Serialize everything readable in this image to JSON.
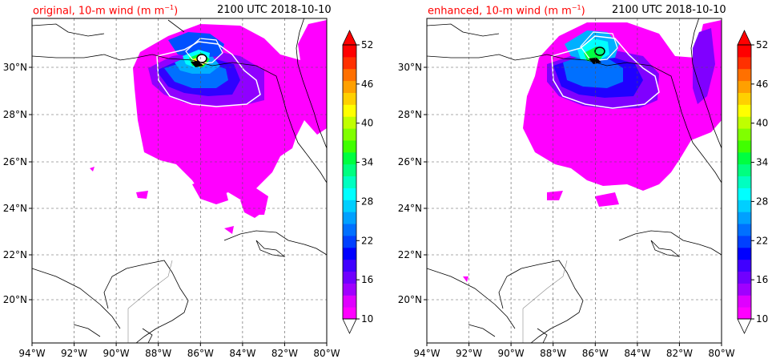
{
  "panels": [
    {
      "title_left": "original, 10-m wind (m m",
      "title_sup": "−1",
      "title_close": ")",
      "title_right": "2100 UTC 2018-10-10"
    },
    {
      "title_left": "enhanced, 10-m wind (m m",
      "title_sup": "−1",
      "title_close": ")",
      "title_right": "2100 UTC 2018-10-10"
    }
  ],
  "axes": {
    "lon_ticks": [
      "94°W",
      "92°W",
      "90°W",
      "88°W",
      "86°W",
      "84°W",
      "82°W",
      "80°W"
    ],
    "lat_ticks": [
      "30°N",
      "28°N",
      "26°N",
      "24°N",
      "22°N",
      "20°N"
    ]
  },
  "colorbar": {
    "ticks": [
      "52",
      "46",
      "40",
      "34",
      "28",
      "22",
      "16",
      "10"
    ],
    "colors": [
      "#ff00ff",
      "#df00ff",
      "#a000ff",
      "#7000ff",
      "#4000ff",
      "#0000ff",
      "#0040ff",
      "#0070ff",
      "#00a0ff",
      "#00cfff",
      "#00ffff",
      "#00ffc0",
      "#00ff80",
      "#00ff40",
      "#40ff00",
      "#80ff00",
      "#c0ff00",
      "#ffff00",
      "#ffd000",
      "#ffa000",
      "#ff7000",
      "#ff3000",
      "#ff0000"
    ],
    "over_color": "#ff0000",
    "under_color": "#ffffff"
  }
}
